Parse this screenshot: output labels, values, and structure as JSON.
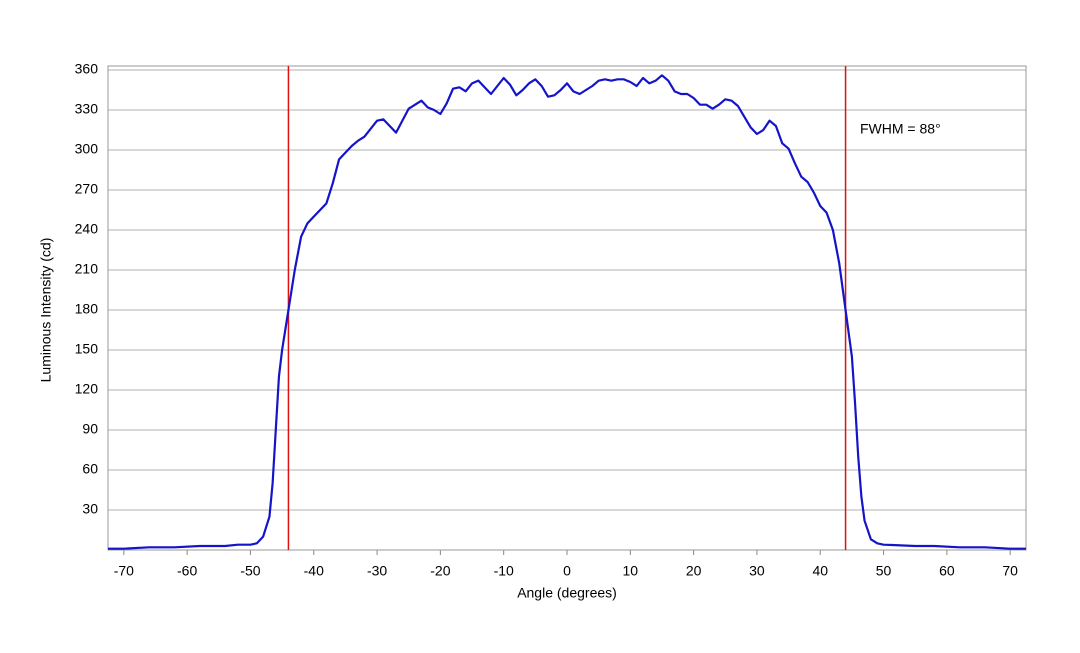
{
  "chart_data": {
    "type": "line",
    "x_label": "Angle (degrees)",
    "y_label": "Luminous Intensity (cd)",
    "annotation": "FWHM = 88°",
    "xlim": [
      -72.5,
      72.5
    ],
    "xticks": [
      -70,
      -60,
      -50,
      -40,
      -30,
      -20,
      -10,
      0,
      10,
      20,
      30,
      40,
      50,
      60,
      70
    ],
    "ylim": [
      0,
      363
    ],
    "yticks": [
      30,
      60,
      90,
      120,
      150,
      180,
      210,
      240,
      270,
      300,
      330,
      360
    ],
    "grid": true,
    "vlines": [
      -44,
      44
    ],
    "vline_color": "#e01010",
    "x": [
      -72.5,
      -70,
      -66,
      -62,
      -58,
      -54,
      -52,
      -50,
      -49,
      -48,
      -47,
      -46.5,
      -46,
      -45.5,
      -45,
      -44,
      -43,
      -42,
      -41,
      -40,
      -39,
      -38,
      -37,
      -36,
      -35,
      -34,
      -33,
      -32,
      -31,
      -30,
      -29,
      -28,
      -27,
      -26,
      -25,
      -24,
      -23,
      -22,
      -21,
      -20,
      -19,
      -18,
      -17,
      -16,
      -15,
      -14,
      -13,
      -12,
      -11,
      -10,
      -9,
      -8,
      -7,
      -6,
      -5,
      -4,
      -3,
      -2,
      -1,
      0,
      1,
      2,
      3,
      4,
      5,
      6,
      7,
      8,
      9,
      10,
      11,
      12,
      13,
      14,
      15,
      16,
      17,
      18,
      19,
      20,
      21,
      22,
      23,
      24,
      25,
      26,
      27,
      28,
      29,
      30,
      31,
      32,
      33,
      34,
      35,
      36,
      37,
      38,
      39,
      40,
      41,
      42,
      43,
      44,
      45,
      45.5,
      46,
      46.5,
      47,
      48,
      49,
      50,
      55,
      58,
      62,
      66,
      70,
      72.5
    ],
    "series": [
      {
        "color": "#1414c8",
        "values": [
          1,
          1,
          2,
          2,
          3,
          3,
          4,
          4,
          5,
          10,
          25,
          50,
          90,
          130,
          150,
          180,
          210,
          235,
          245,
          250,
          255,
          260,
          275,
          293,
          298,
          303,
          307,
          310,
          316,
          322,
          323,
          318,
          313,
          322,
          331,
          334,
          337,
          332,
          330,
          327,
          335,
          346,
          347,
          344,
          350,
          352,
          347,
          342,
          348,
          354,
          349,
          341,
          345,
          350,
          353,
          348,
          340,
          341,
          345,
          350,
          344,
          342,
          345,
          348,
          352,
          353,
          352,
          353,
          353,
          351,
          348,
          354,
          350,
          352,
          356,
          352,
          344,
          342,
          342,
          339,
          334,
          334,
          331,
          334,
          338,
          337,
          333,
          325,
          317,
          312,
          315,
          322,
          318,
          305,
          301,
          290,
          280,
          276,
          268,
          258,
          253,
          240,
          215,
          180,
          145,
          110,
          70,
          40,
          22,
          8,
          5,
          4,
          3,
          3,
          2,
          2,
          1,
          1
        ]
      }
    ]
  }
}
